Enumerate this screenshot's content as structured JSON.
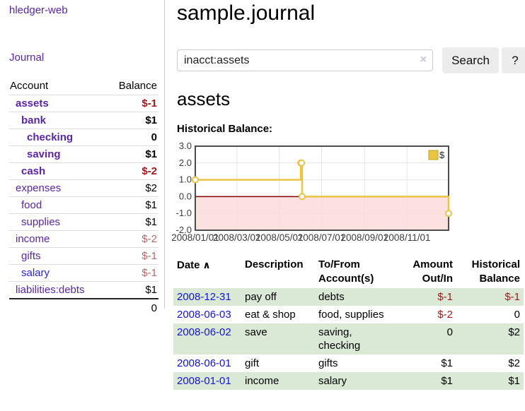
{
  "app": {
    "title": "hledger-web",
    "nav_journal": "Journal"
  },
  "colors": {
    "link_purple": "#5a26a6",
    "link_blue": "#2b22d9",
    "date_link_blue": "#1414d6",
    "negative_strong": "#9e1a1a",
    "negative_soft": "#b56a6a",
    "row_stripe_green": "#d9e9d6",
    "chart_line_gold": "#e9c445",
    "chart_zero_line": "#7f0000",
    "chart_negative_fill": "#fbdcdc"
  },
  "sidebar": {
    "header": {
      "account": "Account",
      "balance": "Balance"
    },
    "accounts": [
      {
        "name": "assets",
        "balance": "$-1",
        "indent": 1,
        "emphasized": true,
        "balance_class": "neg-strong",
        "link_color": "purple"
      },
      {
        "name": "bank",
        "balance": "$1",
        "indent": 2,
        "emphasized": true,
        "balance_class": "pos",
        "link_color": "purple"
      },
      {
        "name": "checking",
        "balance": "0",
        "indent": 3,
        "emphasized": true,
        "balance_class": "pos",
        "link_color": "purple"
      },
      {
        "name": "saving",
        "balance": "$1",
        "indent": 3,
        "emphasized": true,
        "balance_class": "pos",
        "link_color": "purple"
      },
      {
        "name": "cash",
        "balance": "$-2",
        "indent": 2,
        "emphasized": true,
        "balance_class": "neg-strong",
        "link_color": "purple"
      },
      {
        "name": "expenses",
        "balance": "$2",
        "indent": 1,
        "emphasized": false,
        "balance_class": "pos",
        "link_color": "purple"
      },
      {
        "name": "food",
        "balance": "$1",
        "indent": 2,
        "emphasized": false,
        "balance_class": "pos",
        "link_color": "purple"
      },
      {
        "name": "supplies",
        "balance": "$1",
        "indent": 2,
        "emphasized": false,
        "balance_class": "pos",
        "link_color": "purple"
      },
      {
        "name": "income",
        "balance": "$-2",
        "indent": 1,
        "emphasized": false,
        "balance_class": "neg-soft",
        "link_color": "purple"
      },
      {
        "name": "gifts",
        "balance": "$-1",
        "indent": 2,
        "emphasized": false,
        "balance_class": "neg-soft",
        "link_color": "purple"
      },
      {
        "name": "salary",
        "balance": "$-1",
        "indent": 2,
        "emphasized": false,
        "balance_class": "neg-soft",
        "link_color": "blue"
      },
      {
        "name": "liabilities:debts",
        "balance": "$1",
        "indent": 1,
        "emphasized": false,
        "balance_class": "pos",
        "link_color": "purple"
      }
    ],
    "total": "0"
  },
  "header": {
    "title": "sample.journal"
  },
  "search": {
    "value": "inacct:assets",
    "clear_icon": "×",
    "button": "Search",
    "help_button": "?"
  },
  "account_page": {
    "heading": "assets",
    "chart_label": "Historical Balance:"
  },
  "chart_data": {
    "type": "line",
    "title": "Historical Balance",
    "series": [
      {
        "name": "$",
        "color": "#e9c445",
        "step": true,
        "points": [
          [
            "2008-01-01",
            1
          ],
          [
            "2008-06-01",
            2
          ],
          [
            "2008-06-02",
            2
          ],
          [
            "2008-06-03",
            0
          ],
          [
            "2008-12-31",
            -1
          ]
        ]
      }
    ],
    "x_range": [
      "2008-01-01",
      "2008-12-31"
    ],
    "ylim": [
      -2,
      3
    ],
    "y_ticks": [
      3,
      2,
      1,
      0,
      -1,
      -2
    ],
    "x_ticks": [
      "2008/01/01",
      "2008/03/01",
      "2008/05/01",
      "2008/07/01",
      "2008/09/01",
      "2008/11/01"
    ],
    "grid": true,
    "zero_line_color": "#7f0000",
    "negative_region_color": "#fbdcdc",
    "legend": {
      "label": "$",
      "position": "top-right",
      "box_color": "#e9c445",
      "box_border": "#bfa129"
    }
  },
  "register": {
    "columns": [
      {
        "label": "Date",
        "align": "left",
        "sort_indicator": "∧"
      },
      {
        "label": "Description",
        "align": "left"
      },
      {
        "label": "To/From Account(s)",
        "align": "left"
      },
      {
        "label": "Amount Out/In",
        "align": "right"
      },
      {
        "label": "Historical Balance",
        "align": "right"
      }
    ],
    "rows": [
      {
        "date": "2008-12-31",
        "description": "pay off",
        "accounts": "debts",
        "amount": "$-1",
        "amount_negative": true,
        "balance": "$-1",
        "balance_negative": true
      },
      {
        "date": "2008-06-03",
        "description": "eat & shop",
        "accounts": "food, supplies",
        "amount": "$-2",
        "amount_negative": true,
        "balance": "0",
        "balance_negative": false
      },
      {
        "date": "2008-06-02",
        "description": "save",
        "accounts": "saving, checking",
        "amount": "0",
        "amount_negative": false,
        "balance": "$2",
        "balance_negative": false
      },
      {
        "date": "2008-06-01",
        "description": "gift",
        "accounts": "gifts",
        "amount": "$1",
        "amount_negative": false,
        "balance": "$2",
        "balance_negative": false
      },
      {
        "date": "2008-01-01",
        "description": "income",
        "accounts": "salary",
        "amount": "$1",
        "amount_negative": false,
        "balance": "$1",
        "balance_negative": false
      }
    ]
  }
}
